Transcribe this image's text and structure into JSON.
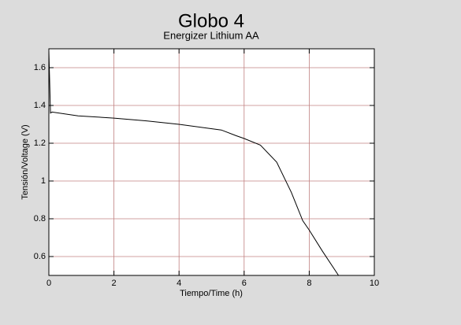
{
  "chart_data": {
    "type": "line",
    "title": "Globo 4",
    "subtitle": "Energizer Lithium AA",
    "x_label": "Tiempo/Time (h)",
    "y_label": "Tensión/Voltage (V)",
    "x": [
      0,
      0.05,
      0.1,
      0.9,
      2,
      3,
      4,
      5.3,
      5.75,
      6,
      6.5,
      7,
      7.45,
      7.8,
      8,
      8.4,
      8.9
    ],
    "series": [
      {
        "name": "Energizer Lithium AA",
        "color": "#000000",
        "values": [
          1.69,
          1.36,
          1.365,
          1.345,
          1.333,
          1.318,
          1.3,
          1.27,
          1.24,
          1.225,
          1.19,
          1.1,
          0.94,
          0.79,
          0.74,
          0.63,
          0.5
        ]
      }
    ],
    "xlim": [
      0,
      10
    ],
    "xticks": [
      0,
      2,
      4,
      6,
      8,
      10
    ],
    "ylim": [
      0.5,
      1.7
    ],
    "yticks": [
      0.6,
      0.8,
      1,
      1.2,
      1.4,
      1.6
    ],
    "grid": true,
    "grid_color": "#c08080"
  }
}
